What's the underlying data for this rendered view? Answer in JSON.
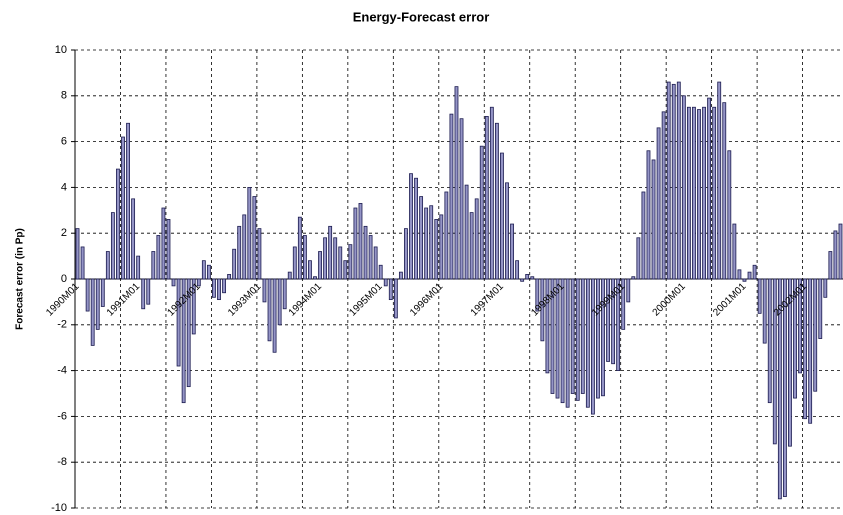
{
  "chart_data": {
    "type": "bar",
    "title": "Energy-Forecast error",
    "y_label": "Forecast error (in Pp)",
    "categories": [
      "1990M01",
      null,
      null,
      null,
      null,
      null,
      null,
      null,
      null,
      null,
      null,
      null,
      "1991M01",
      null,
      null,
      null,
      null,
      null,
      null,
      null,
      null,
      null,
      null,
      null,
      "1992M01",
      null,
      null,
      null,
      null,
      null,
      null,
      null,
      null,
      null,
      null,
      null,
      "1993M01",
      null,
      null,
      null,
      null,
      null,
      null,
      null,
      null,
      null,
      null,
      null,
      "1994M01",
      null,
      null,
      null,
      null,
      null,
      null,
      null,
      null,
      null,
      null,
      null,
      "1995M01",
      null,
      null,
      null,
      null,
      null,
      null,
      null,
      null,
      null,
      null,
      null,
      "1996M01",
      null,
      null,
      null,
      null,
      null,
      null,
      null,
      null,
      null,
      null,
      null,
      "1997M01",
      null,
      null,
      null,
      null,
      null,
      null,
      null,
      null,
      null,
      null,
      null,
      "1998M01",
      null,
      null,
      null,
      null,
      null,
      null,
      null,
      null,
      null,
      null,
      null,
      "1999M01",
      null,
      null,
      null,
      null,
      null,
      null,
      null,
      null,
      null,
      null,
      null,
      "2000M01",
      null,
      null,
      null,
      null,
      null,
      null,
      null,
      null,
      null,
      null,
      null,
      "2001M01",
      null,
      null,
      null,
      null,
      null,
      null,
      null,
      null,
      null,
      null,
      null,
      "2002M01",
      null,
      null,
      null,
      null,
      null,
      null,
      null
    ],
    "values": [
      2.2,
      1.4,
      -1.4,
      -2.9,
      -2.2,
      -1.2,
      1.2,
      2.9,
      4.8,
      6.2,
      6.8,
      3.5,
      1.0,
      -1.3,
      -1.1,
      1.2,
      1.9,
      3.1,
      2.6,
      -0.3,
      -3.8,
      -5.4,
      -4.7,
      -2.4,
      -0.3,
      0.8,
      0.6,
      -0.8,
      -0.9,
      -0.6,
      0.2,
      1.3,
      2.3,
      2.8,
      4.0,
      3.6,
      2.2,
      -1.0,
      -2.7,
      -3.2,
      -2.0,
      -1.3,
      0.3,
      1.4,
      2.7,
      1.9,
      0.8,
      0.1,
      1.2,
      1.8,
      2.3,
      1.8,
      1.4,
      0.8,
      1.5,
      3.1,
      3.3,
      2.3,
      1.9,
      1.4,
      0.6,
      -0.3,
      -0.9,
      -1.7,
      0.3,
      2.2,
      4.6,
      4.4,
      3.6,
      3.1,
      3.2,
      2.6,
      2.8,
      3.8,
      7.2,
      8.4,
      7.0,
      4.1,
      2.9,
      3.5,
      5.8,
      7.1,
      7.5,
      6.8,
      5.5,
      4.2,
      2.4,
      0.8,
      -0.1,
      0.2,
      0.1,
      -1.4,
      -2.7,
      -4.1,
      -5.0,
      -5.2,
      -5.4,
      -5.6,
      -5.0,
      -5.3,
      -5.0,
      -5.6,
      -5.9,
      -5.2,
      -5.1,
      -3.6,
      -3.7,
      -4.0,
      -2.2,
      -1.0,
      0.1,
      1.8,
      3.8,
      5.6,
      5.2,
      6.6,
      7.3,
      8.6,
      8.5,
      8.6,
      8.0,
      7.5,
      7.5,
      7.4,
      7.5,
      7.9,
      7.5,
      8.6,
      7.7,
      5.6,
      2.4,
      0.4,
      -0.1,
      0.3,
      0.6,
      -1.5,
      -2.8,
      -5.4,
      -7.2,
      -9.6,
      -9.5,
      -7.3,
      -5.2,
      -4.1,
      -6.1,
      -6.3,
      -4.9,
      -2.6,
      -0.8,
      1.2,
      2.1,
      2.4
    ],
    "color": "#9494c6",
    "edge_color": "#1c1c50",
    "ylim": [
      -10,
      10
    ],
    "yticks": [
      -10,
      -8,
      -6,
      -4,
      -2,
      0,
      2,
      4,
      6,
      8,
      10
    ],
    "grid": true
  }
}
